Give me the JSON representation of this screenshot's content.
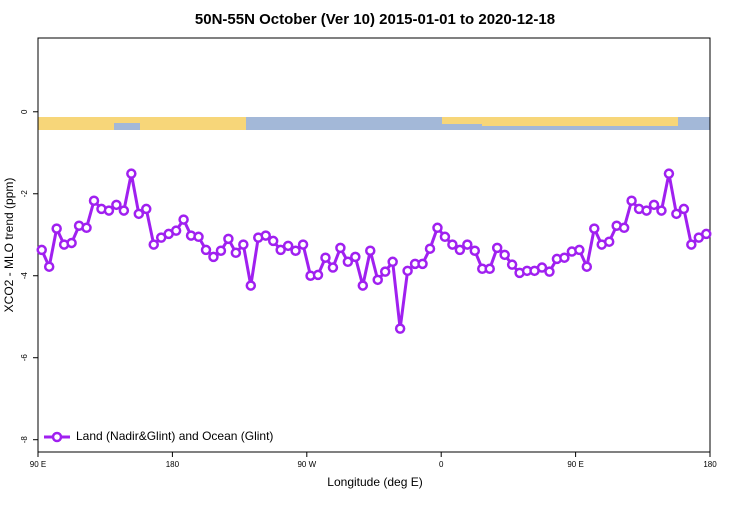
{
  "chart_data": {
    "type": "line",
    "title": "50N-55N October (Ver 10)   2015-01-01 to 2020-12-18",
    "x_label": "Longitude (deg E)",
    "y_label": "XCO2 - MLO trend (ppm)",
    "x": [
      92.5,
      97.5,
      102.5,
      107.5,
      112.5,
      117.5,
      122.5,
      127.5,
      132.5,
      137.5,
      142.5,
      147.5,
      152.5,
      157.5,
      162.5,
      167.5,
      172.5,
      177.5,
      182.5,
      187.5,
      192.5,
      197.5,
      202.5,
      207.5,
      212.5,
      217.5,
      222.5,
      227.5,
      232.5,
      237.5,
      242.5,
      247.5,
      252.5,
      257.5,
      262.5,
      267.5,
      272.5,
      277.5,
      282.5,
      287.5,
      292.5,
      297.5,
      302.5,
      307.5,
      312.5,
      317.5,
      322.5,
      327.5,
      332.5,
      337.5,
      342.5,
      347.5,
      352.5,
      357.5,
      362.5,
      367.5,
      372.5,
      377.5,
      382.5,
      387.5,
      392.5,
      397.5,
      402.5,
      407.5,
      412.5,
      417.5,
      422.5,
      427.5,
      432.5,
      437.5,
      442.5,
      447.5,
      452.5,
      457.5,
      462.5,
      467.5,
      472.5,
      477.5,
      482.5,
      487.5,
      492.5,
      497.5,
      502.5,
      507.5,
      512.5,
      517.5,
      522.5,
      527.5,
      532.5,
      537.5
    ],
    "series": [
      {
        "name": "Land (Nadir&Glint) and Ocean (Glint)",
        "color": "#a020f0",
        "values": [
          -3.37,
          -3.78,
          -2.85,
          -3.24,
          -3.2,
          -2.78,
          -2.83,
          -2.17,
          -2.37,
          -2.41,
          -2.27,
          -2.41,
          -1.51,
          -2.49,
          -2.37,
          -3.24,
          -3.07,
          -2.98,
          -2.9,
          -2.63,
          -3.02,
          -3.05,
          -3.37,
          -3.54,
          -3.39,
          -3.1,
          -3.44,
          -3.24,
          -4.24,
          -3.07,
          -3.02,
          -3.15,
          -3.37,
          -3.27,
          -3.39,
          -3.24,
          -4.0,
          -3.98,
          -3.56,
          -3.8,
          -3.32,
          -3.66,
          -3.54,
          -4.24,
          -3.39,
          -4.1,
          -3.9,
          -3.66,
          -5.29,
          -3.88,
          -3.71,
          -3.71,
          -3.34,
          -2.83,
          -3.05,
          -3.24,
          -3.37,
          -3.24,
          -3.39,
          -3.83,
          -3.83,
          -3.32,
          -3.49,
          -3.73,
          -3.93,
          -3.88,
          -3.88,
          -3.8,
          -3.9,
          -3.59,
          -3.56,
          -3.41,
          -3.37,
          -3.78,
          -2.85,
          -3.24,
          -3.17,
          -2.78,
          -2.83,
          -2.17,
          -2.37,
          -2.41,
          -2.27,
          -2.41,
          -1.51,
          -2.49,
          -2.37,
          -3.24,
          -3.07,
          -2.98
        ]
      }
    ],
    "xlim": [
      90,
      540
    ],
    "xticks": [
      {
        "value": 90,
        "label": "90 E"
      },
      180,
      {
        "value": 270,
        "label": "90 W"
      },
      {
        "value": 360,
        "label": "0"
      },
      {
        "value": 450,
        "label": "90 E"
      },
      {
        "value": 540,
        "label": "180"
      }
    ],
    "ylim": [
      -8.3,
      1.8
    ],
    "yticks": [
      0,
      -2,
      -4,
      -6,
      -8
    ],
    "legend": "bottom-left"
  }
}
